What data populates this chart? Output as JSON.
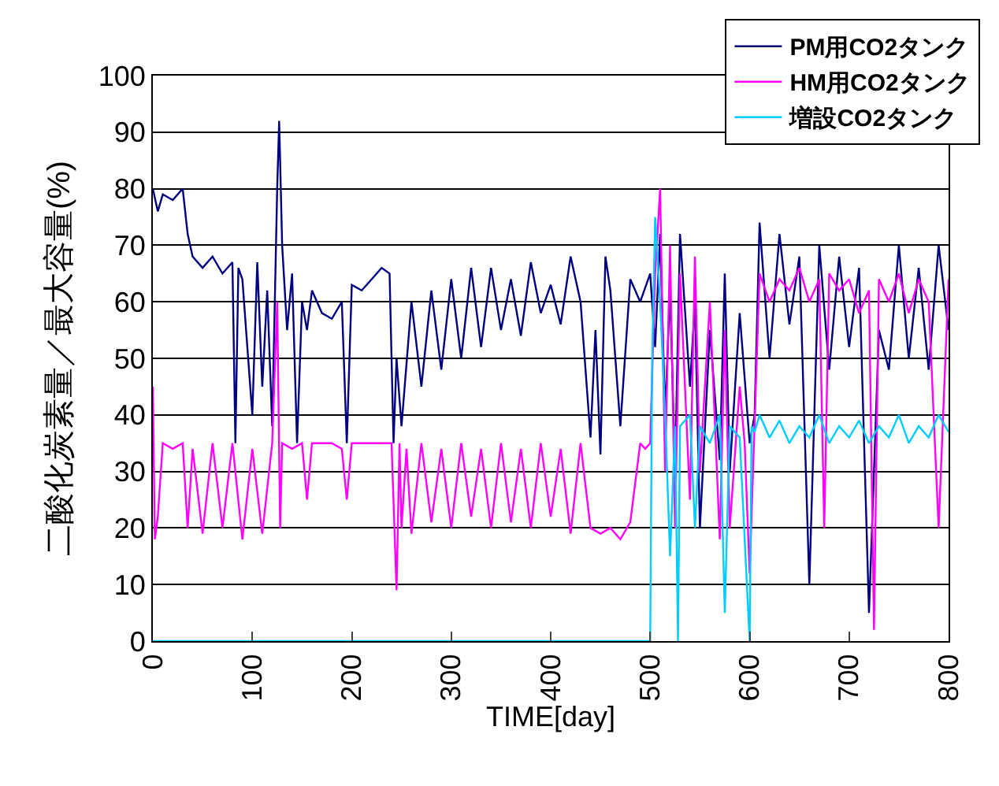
{
  "chart_data": {
    "type": "line",
    "xlabel": "TIME[day]",
    "ylabel": "二酸化炭素量／最大容量(%)",
    "xlim": [
      0,
      800
    ],
    "xticks": [
      0,
      100,
      200,
      300,
      400,
      500,
      600,
      700,
      800
    ],
    "ylim": [
      0,
      100
    ],
    "yticks": [
      0,
      10,
      20,
      30,
      40,
      50,
      60,
      70,
      80,
      90,
      100
    ],
    "grid": "y",
    "legend": "top right",
    "series": [
      {
        "name": "PM用CO2タンク",
        "color": "#000080",
        "x": [
          0,
          5,
          10,
          20,
          30,
          35,
          40,
          50,
          60,
          70,
          80,
          83,
          86,
          90,
          100,
          105,
          110,
          115,
          120,
          125,
          127,
          130,
          135,
          140,
          145,
          150,
          155,
          160,
          170,
          180,
          190,
          195,
          200,
          210,
          220,
          230,
          238,
          242,
          245,
          250,
          260,
          270,
          280,
          290,
          300,
          310,
          320,
          330,
          340,
          350,
          360,
          370,
          380,
          390,
          400,
          410,
          420,
          430,
          440,
          445,
          450,
          455,
          460,
          470,
          480,
          490,
          500,
          505,
          510,
          515,
          520,
          525,
          530,
          540,
          545,
          550,
          560,
          570,
          575,
          580,
          590,
          600,
          605,
          610,
          620,
          630,
          640,
          650,
          660,
          670,
          680,
          690,
          700,
          710,
          720,
          730,
          740,
          750,
          760,
          770,
          780,
          790,
          800
        ],
        "values": [
          80,
          76,
          79,
          78,
          80,
          72,
          68,
          66,
          68,
          65,
          67,
          35,
          66,
          64,
          40,
          67,
          45,
          62,
          38,
          80,
          92,
          70,
          55,
          65,
          35,
          60,
          55,
          62,
          58,
          57,
          60,
          35,
          63,
          62,
          64,
          66,
          65,
          35,
          50,
          38,
          60,
          45,
          62,
          48,
          64,
          50,
          66,
          52,
          66,
          55,
          64,
          54,
          67,
          58,
          63,
          56,
          68,
          60,
          36,
          55,
          33,
          68,
          62,
          38,
          64,
          60,
          65,
          52,
          72,
          40,
          62,
          30,
          72,
          45,
          60,
          20,
          55,
          32,
          65,
          30,
          58,
          35,
          40,
          74,
          50,
          72,
          56,
          68,
          10,
          70,
          48,
          68,
          52,
          66,
          5,
          55,
          48,
          70,
          50,
          66,
          48,
          70,
          55
        ]
      },
      {
        "name": "HM用CO2タンク",
        "color": "#ff00ff",
        "x": [
          0,
          2,
          5,
          10,
          20,
          30,
          35,
          40,
          50,
          60,
          70,
          80,
          90,
          100,
          110,
          120,
          125,
          128,
          130,
          140,
          150,
          155,
          160,
          180,
          190,
          195,
          200,
          220,
          240,
          245,
          248,
          250,
          255,
          260,
          270,
          280,
          290,
          300,
          310,
          320,
          330,
          340,
          350,
          360,
          370,
          380,
          390,
          400,
          410,
          420,
          430,
          440,
          450,
          460,
          470,
          480,
          490,
          495,
          500,
          505,
          510,
          515,
          520,
          525,
          530,
          540,
          545,
          550,
          560,
          570,
          575,
          580,
          590,
          595,
          600,
          610,
          620,
          630,
          640,
          650,
          660,
          670,
          675,
          680,
          690,
          700,
          710,
          720,
          725,
          730,
          740,
          750,
          760,
          770,
          780,
          790,
          800
        ],
        "values": [
          45,
          18,
          22,
          35,
          34,
          35,
          20,
          34,
          19,
          35,
          20,
          35,
          18,
          34,
          19,
          35,
          60,
          20,
          35,
          34,
          35,
          25,
          35,
          35,
          34,
          25,
          35,
          35,
          35,
          9,
          35,
          20,
          34,
          19,
          35,
          21,
          34,
          20,
          35,
          22,
          34,
          20,
          35,
          21,
          34,
          20,
          35,
          22,
          34,
          19,
          35,
          20,
          19,
          20,
          18,
          21,
          35,
          34,
          35,
          65,
          80,
          30,
          70,
          20,
          65,
          25,
          68,
          30,
          60,
          18,
          55,
          20,
          45,
          35,
          12,
          65,
          60,
          64,
          62,
          66,
          60,
          64,
          20,
          65,
          62,
          64,
          58,
          62,
          2,
          64,
          60,
          65,
          58,
          64,
          60,
          20,
          64
        ]
      },
      {
        "name": "増設CO2タンク",
        "color": "#00ccff",
        "x": [
          0,
          500,
          502,
          505,
          510,
          515,
          520,
          525,
          528,
          530,
          540,
          545,
          550,
          560,
          570,
          575,
          580,
          590,
          600,
          602,
          605,
          610,
          620,
          630,
          640,
          650,
          660,
          670,
          680,
          690,
          700,
          710,
          720,
          730,
          740,
          750,
          760,
          770,
          780,
          790,
          800
        ],
        "values": [
          0,
          0,
          50,
          75,
          60,
          40,
          15,
          38,
          0,
          38,
          40,
          20,
          38,
          35,
          40,
          5,
          38,
          36,
          0,
          38,
          37,
          40,
          36,
          39,
          35,
          38,
          36,
          40,
          35,
          38,
          36,
          39,
          35,
          38,
          36,
          40,
          35,
          38,
          36,
          40,
          37
        ]
      }
    ]
  }
}
